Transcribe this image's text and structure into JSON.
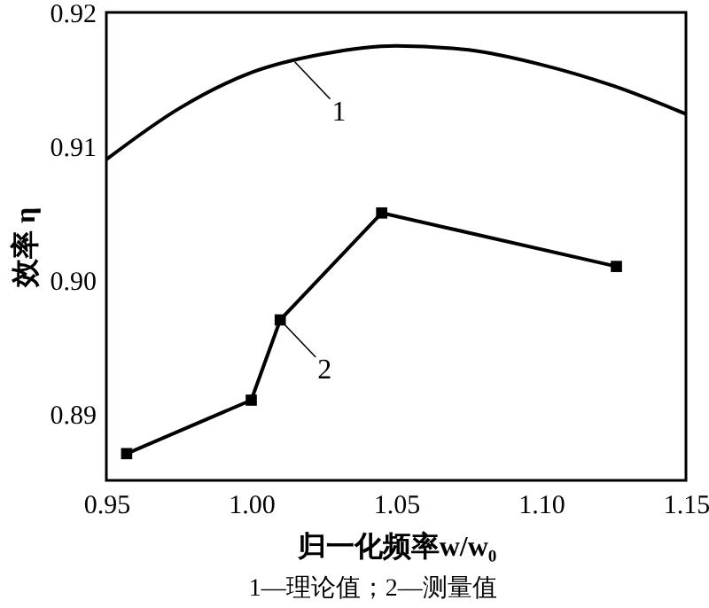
{
  "chart_data": {
    "type": "line",
    "xlabel": "归一化频率w/w₀",
    "ylabel": "效率 η",
    "xlim": [
      0.95,
      1.15
    ],
    "xticks": [
      0.95,
      {
        "value": 1,
        "label": "1.00"
      },
      1.05,
      {
        "value": 1.1,
        "label": "1.10"
      },
      1.15
    ],
    "ylim": [
      0.885,
      0.92
    ],
    "yticks": [
      0.89,
      {
        "value": 0.9,
        "label": "0.90"
      },
      0.91,
      0.92
    ],
    "grid": false,
    "series": [
      {
        "color": "#000000",
        "marker": "none",
        "x": [
          0.95,
          0.975,
          1.0,
          1.025,
          1.05,
          1.075,
          1.1,
          1.125,
          1.15
        ],
        "values": [
          0.909,
          0.9128,
          0.9155,
          0.9169,
          0.9175,
          0.9172,
          0.9161,
          0.9145,
          0.9124
        ]
      },
      {
        "color": "#000000",
        "marker": "square",
        "x": [
          0.957,
          1.0,
          1.01,
          1.045,
          1.126
        ],
        "values": [
          0.887,
          0.891,
          0.897,
          0.905,
          0.901
        ]
      }
    ],
    "annotations": [
      {
        "text": "1",
        "x": 1.015,
        "y": 0.9163
      },
      {
        "text": "2",
        "x": 1.01,
        "y": 0.897
      },
      "1—理论值；2—测量值"
    ]
  }
}
